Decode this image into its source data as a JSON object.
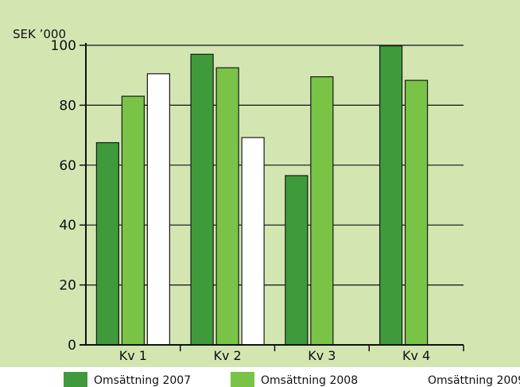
{
  "chart_data": {
    "type": "bar",
    "ylabel": "SEK ’000",
    "ylim": [
      0,
      100
    ],
    "yticks": [
      0,
      20,
      40,
      60,
      80,
      100
    ],
    "grid": true,
    "legend_position": "bottom",
    "categories": [
      "Kv 1",
      "Kv 2",
      "Kv 3",
      "Kv 4"
    ],
    "series": [
      {
        "name": "Omsättning 2007",
        "color": "#3f9a3b",
        "values": [
          67.5,
          97,
          56.5,
          99.8
        ]
      },
      {
        "name": "Omsättning 2008",
        "color": "#79c447",
        "values": [
          83,
          92.5,
          89.5,
          88.3
        ]
      },
      {
        "name": "Omsättning 2009",
        "color": "#ffffff",
        "values": [
          90.5,
          69.2,
          null,
          null
        ]
      }
    ],
    "colors": {
      "background": "#d3e6b2",
      "page": "#ffffff",
      "grid": "#111111",
      "bar_outline": "#1a1a1a"
    }
  }
}
